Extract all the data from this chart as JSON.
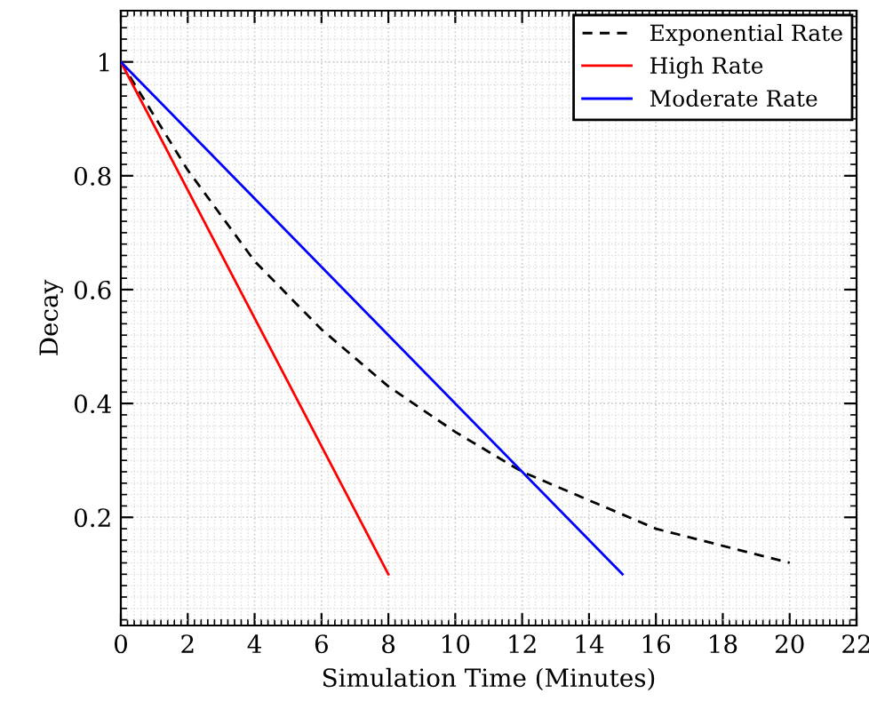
{
  "chart_data": {
    "type": "line",
    "xlabel": "Simulation Time (Minutes)",
    "ylabel": "Decay",
    "xlim": [
      0,
      22
    ],
    "ylim": [
      0.01,
      1.09
    ],
    "xticks": [
      0,
      2,
      4,
      6,
      8,
      10,
      12,
      14,
      16,
      18,
      20,
      22
    ],
    "yticks": [
      0.2,
      0.4,
      0.6,
      0.8,
      1
    ],
    "grid": true,
    "legend": "top right",
    "marker": "none",
    "series": [
      {
        "name": "Exponential Rate",
        "color": "#000000",
        "line_style": "dashed",
        "x": [
          0,
          2,
          4,
          6,
          8,
          10,
          12,
          14,
          16,
          18,
          20
        ],
        "values": [
          1,
          0.81,
          0.65,
          0.53,
          0.43,
          0.35,
          0.28,
          0.23,
          0.18,
          0.15,
          0.12
        ]
      },
      {
        "name": "High Rate",
        "color": "#ff0000",
        "line_style": "solid",
        "x": [
          0,
          8
        ],
        "values": [
          1,
          0.1
        ]
      },
      {
        "name": "Moderate Rate",
        "color": "#0000ff",
        "line_style": "solid",
        "x": [
          0,
          15
        ],
        "values": [
          1,
          0.1
        ]
      }
    ]
  }
}
